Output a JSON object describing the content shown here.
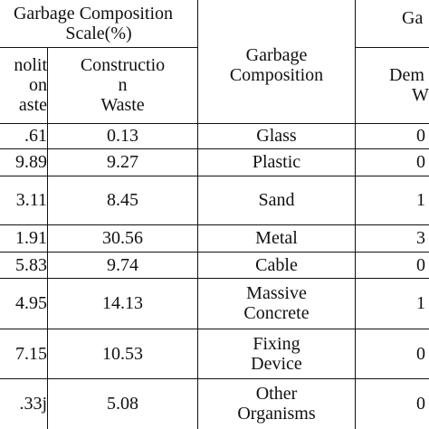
{
  "header": {
    "group_left_line1": "Garbage Composition",
    "group_left_line2": "Scale(%)",
    "group_right": "Ga",
    "col_demolition_partial": "nolit\non\naste",
    "col_construction": "Constructio\nn\nWaste",
    "col_composition": "Garbage\nComposition",
    "col_demolition_right_line1": "Dem",
    "col_demolition_right_line2": "W"
  },
  "rows": [
    {
      "demolition": ".61",
      "construction": "0.13",
      "composition": "Glass",
      "right": "0"
    },
    {
      "demolition": "9.89",
      "construction": "9.27",
      "composition": "Plastic",
      "right": "0"
    },
    {
      "demolition": "3.11",
      "construction": "8.45",
      "composition": "Sand",
      "right": "1"
    },
    {
      "demolition": "1.91",
      "construction": "30.56",
      "composition": "Metal",
      "right": "3"
    },
    {
      "demolition": "5.83",
      "construction": "9.74",
      "composition": "Cable",
      "right": "0"
    },
    {
      "demolition": "4.95",
      "construction": "14.13",
      "composition": "Massive\nConcrete",
      "right": "1"
    },
    {
      "demolition": "7.15",
      "construction": "10.53",
      "composition": "Fixing\nDevice",
      "right": "0"
    },
    {
      "demolition": ".33j",
      "construction": "5.08",
      "composition": "Other\nOrganisms",
      "right": "0"
    }
  ]
}
